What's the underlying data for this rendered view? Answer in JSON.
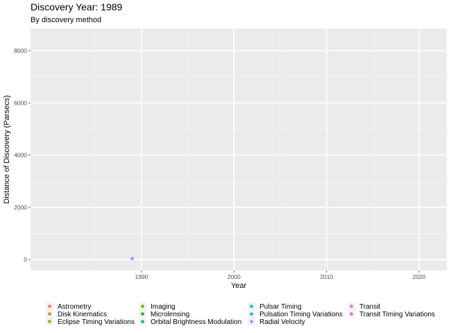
{
  "chart_data": {
    "type": "scatter",
    "title": "Discovery Year: 1989",
    "subtitle": "By discovery method",
    "xlabel": "Year",
    "ylabel": "Distance of Discovery (Parsecs)",
    "xlim": [
      1978,
      2023
    ],
    "ylim": [
      -420,
      8850
    ],
    "x_ticks": [
      1990,
      2000,
      2010,
      2020
    ],
    "y_ticks": [
      0,
      2000,
      4000,
      6000,
      8000
    ],
    "grid": true,
    "legend_placement": "bottom",
    "series": [
      {
        "name": "Astrometry",
        "color": "#F8766D",
        "points": []
      },
      {
        "name": "Disk Kinematics",
        "color": "#DE8C00",
        "points": []
      },
      {
        "name": "Eclipse Timing Variations",
        "color": "#B79F00",
        "points": []
      },
      {
        "name": "Imaging",
        "color": "#7CAE00",
        "points": []
      },
      {
        "name": "Microlensing",
        "color": "#00BA38",
        "points": []
      },
      {
        "name": "Orbital Brightness Modulation",
        "color": "#00C08B",
        "points": []
      },
      {
        "name": "Pulsar Timing",
        "color": "#00BFC4",
        "points": []
      },
      {
        "name": "Pulsation Timing Variations",
        "color": "#00B4F0",
        "points": []
      },
      {
        "name": "Radial Velocity",
        "color": "#C77CFF",
        "points": [
          {
            "x": 1989,
            "y": 40
          }
        ]
      },
      {
        "name": "Transit",
        "color": "#F564E3",
        "points": []
      },
      {
        "name": "Transit Timing Variations",
        "color": "#FF64B0",
        "points": []
      }
    ]
  }
}
